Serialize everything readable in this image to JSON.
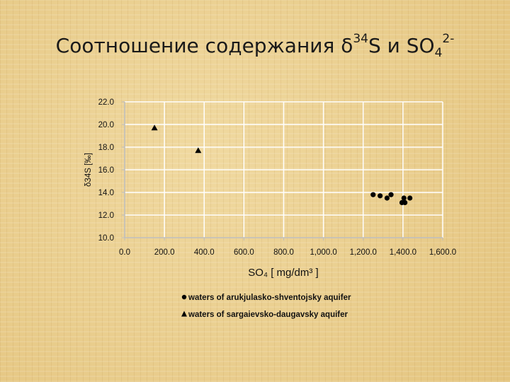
{
  "slide": {
    "title_main": "Соотношение содержания ",
    "title_delta": "δ",
    "title_34": "34",
    "title_s": "S  и SO",
    "title_sub4": "4",
    "title_sup": "2-"
  },
  "chart_data": {
    "type": "scatter",
    "xlabel": "SO₄  [ mg/dm³ ]",
    "ylabel": "δ34S [‰]",
    "xlim": [
      0,
      1600
    ],
    "ylim": [
      10,
      22
    ],
    "x_ticks": [
      "0.0",
      "200.0",
      "400.0",
      "600.0",
      "800.0",
      "1,000.0",
      "1,200.0",
      "1,400.0",
      "1,600.0"
    ],
    "y_ticks": [
      "10.0",
      "12.0",
      "14.0",
      "16.0",
      "18.0",
      "20.0",
      "22.0"
    ],
    "grid": true,
    "legend_position": "bottom",
    "series": [
      {
        "name": "waters of arukjulasko-shventojsky aquifer",
        "marker": "circle",
        "color": "#000000",
        "points": [
          [
            1250,
            13.8
          ],
          [
            1285,
            13.7
          ],
          [
            1320,
            13.5
          ],
          [
            1340,
            13.8
          ],
          [
            1395,
            13.1
          ],
          [
            1405,
            13.5
          ],
          [
            1410,
            13.1
          ],
          [
            1435,
            13.5
          ]
        ]
      },
      {
        "name": "waters of sargaievsko-daugavsky aquifer",
        "marker": "triangle",
        "color": "#000000",
        "points": [
          [
            150,
            19.7
          ],
          [
            370,
            17.7
          ]
        ]
      }
    ]
  }
}
